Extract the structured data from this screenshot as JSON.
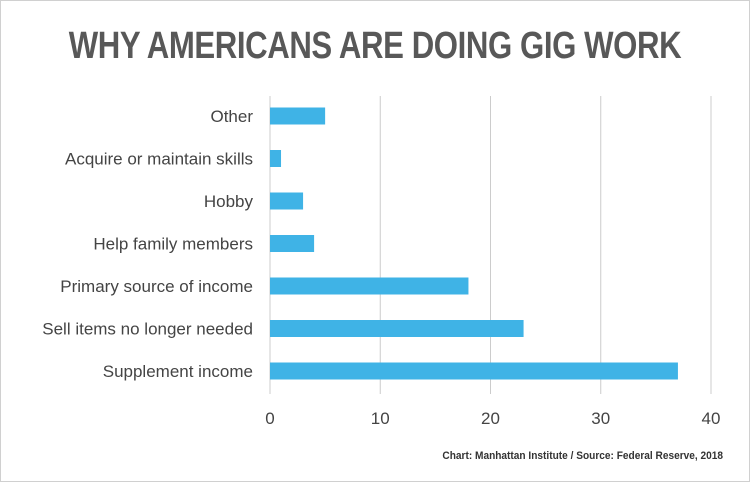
{
  "title": "WHY AMERICANS ARE DOING GIG WORK",
  "footer": "Chart: Manhattan Institute / Source: Federal Reserve, 2018",
  "chart_data": {
    "type": "bar",
    "orientation": "horizontal",
    "title": "WHY AMERICANS ARE DOING GIG WORK",
    "xlabel": "",
    "ylabel": "",
    "categories": [
      "Other",
      "Acquire or maintain skills",
      "Hobby",
      "Help family members",
      "Primary source of income",
      "Sell items no longer needed",
      "Supplement income"
    ],
    "values": [
      5,
      1,
      3,
      4,
      18,
      23,
      37
    ],
    "xlim": [
      0,
      40
    ],
    "xticks": [
      0,
      10,
      20,
      30,
      40
    ],
    "grid": true,
    "bar_color": "#3fb3e6"
  }
}
